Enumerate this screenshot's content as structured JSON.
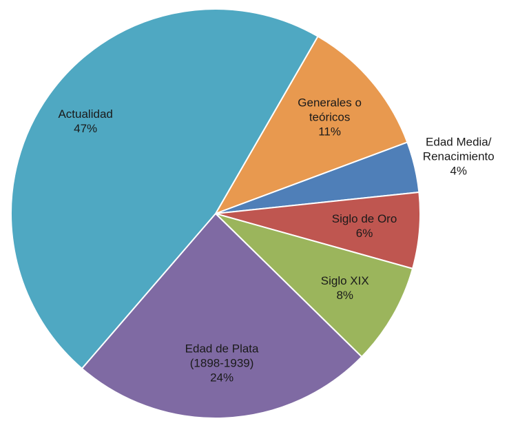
{
  "chart_data": {
    "type": "pie",
    "categories": [
      "Generales o\nteóricos",
      "Edad Media/\nRenacimiento",
      "Siglo de Oro",
      "Siglo XIX",
      "Edad de Plata\n(1898-1939)",
      "Actualidad"
    ],
    "values": [
      11,
      4,
      6,
      8,
      24,
      47
    ],
    "value_labels": [
      "11%",
      "4%",
      "6%",
      "8%",
      "24%",
      "47%"
    ],
    "colors": [
      "#e8994f",
      "#4f7fb8",
      "#bf5650",
      "#9bb55c",
      "#7f6aa3",
      "#4fa8c2"
    ]
  }
}
